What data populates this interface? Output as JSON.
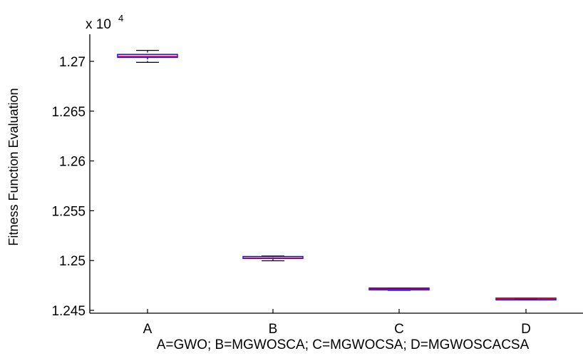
{
  "chart_data": {
    "type": "box",
    "title": "",
    "xlabel": "A=GWO; B=MGWOSCA; C=MGWOCSA; D=MGWOSCACSA",
    "ylabel": "Fitness Function Evaluation",
    "exponent_label": "x 10",
    "exponent_power": "4",
    "ylim": [
      1.2448,
      1.2725
    ],
    "yticks": [
      1.245,
      1.25,
      1.255,
      1.26,
      1.265,
      1.27
    ],
    "ytick_labels": [
      "1.245",
      "1.25",
      "1.255",
      "1.26",
      "1.265",
      "1.27"
    ],
    "categories": [
      "A",
      "B",
      "C",
      "D"
    ],
    "boxes": [
      {
        "category": "A",
        "whisker_low": 1.2699,
        "q1": 1.2704,
        "median": 1.2705,
        "q3": 1.2707,
        "whisker_high": 1.2711
      },
      {
        "category": "B",
        "whisker_low": 1.24998,
        "q1": 1.25015,
        "median": 1.25025,
        "q3": 1.25035,
        "whisker_high": 1.25045
      },
      {
        "category": "C",
        "whisker_low": 1.24702,
        "q1": 1.24708,
        "median": 1.24713,
        "q3": 1.24718,
        "whisker_high": 1.24724
      },
      {
        "category": "D",
        "whisker_low": 1.24607,
        "q1": 1.24613,
        "median": 1.24615,
        "q3": 1.24617,
        "whisker_high": 1.24622
      }
    ],
    "grid": false,
    "legend": "none",
    "colors": {
      "box": "#0000ff",
      "median": "#ff0000",
      "whisker": "#000000",
      "axis": "#000000"
    }
  }
}
